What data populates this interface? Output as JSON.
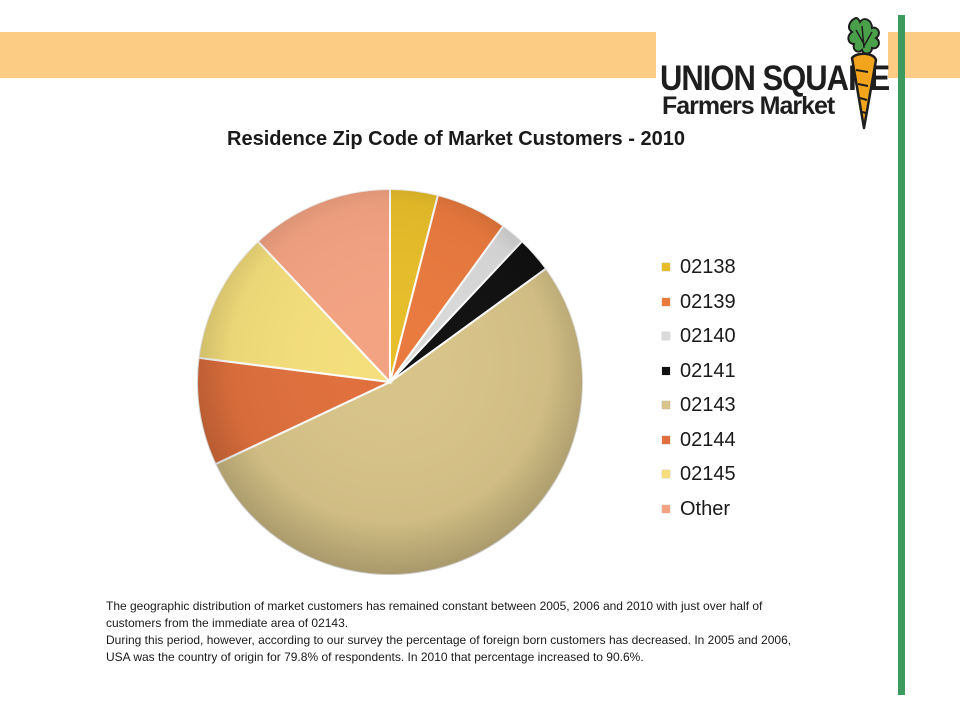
{
  "logo": {
    "line1": "UNION SQUARE",
    "line2": "Farmers Market",
    "icon": "carrot-icon"
  },
  "chart_data": {
    "type": "pie",
    "title": "Residence Zip Code of Market Customers - 2010",
    "legend_position": "right",
    "slices": [
      {
        "label": "02138",
        "value": 4,
        "color": "#e7be2a"
      },
      {
        "label": "02139",
        "value": 6,
        "color": "#ea7a3e"
      },
      {
        "label": "02140",
        "value": 2,
        "color": "#dadada"
      },
      {
        "label": "02141",
        "value": 3,
        "color": "#111111"
      },
      {
        "label": "02143",
        "value": 53,
        "color": "#d8c489"
      },
      {
        "label": "02144",
        "value": 9,
        "color": "#e0703d"
      },
      {
        "label": "02145",
        "value": 11,
        "color": "#f5df7c"
      },
      {
        "label": "Other",
        "value": 12,
        "color": "#f4a382"
      }
    ]
  },
  "note": {
    "paragraph1": "The geographic distribution of market customers has remained constant between 2005, 2006 and 2010 with just over half of customers from the immediate area of 02143.",
    "paragraph2": "During this period, however, according to our survey the percentage of foreign born customers has decreased.  In 2005 and 2006, USA was the country of origin for 79.8% of respondents. In 2010 that percentage increased to 90.6%."
  },
  "colors": {
    "header_band": "#fdcc84",
    "accent_green": "#3c9a5f"
  }
}
